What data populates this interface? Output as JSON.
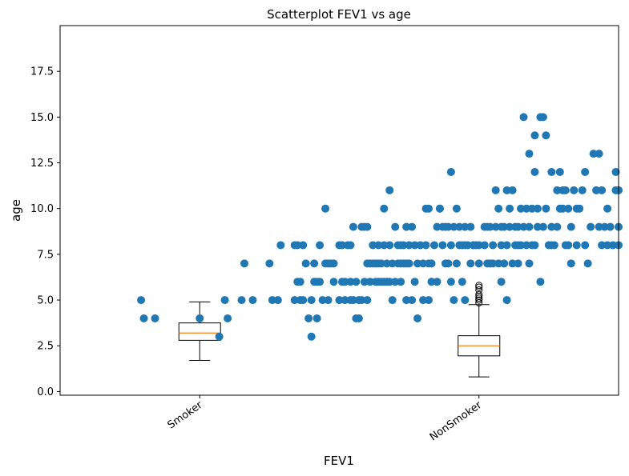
{
  "chart_data": {
    "type": "scatter",
    "title": "Scatterplot FEV1 vs age",
    "xlabel": "FEV1",
    "ylabel": "age",
    "xlim": [
      0.5,
      2.5
    ],
    "ylim": [
      -0.2,
      20
    ],
    "categories": [
      "Smoker",
      "NonSmoker"
    ],
    "category_positions": [
      1,
      2
    ],
    "yticks": [
      0.0,
      2.5,
      5.0,
      7.5,
      10.0,
      12.5,
      15.0,
      17.5
    ],
    "ytick_labels": [
      "0.0",
      "2.5",
      "5.0",
      "7.5",
      "10.0",
      "12.5",
      "15.0",
      "17.5"
    ],
    "grid": false,
    "point_color": "#1f77b4",
    "median_color": "#ff7f0e",
    "boxplots": [
      {
        "position": 1,
        "whisker_low": 1.7,
        "q1": 2.8,
        "median": 3.2,
        "q3": 3.75,
        "whisker_high": 4.9,
        "outliers": []
      },
      {
        "position": 2,
        "whisker_low": 0.8,
        "q1": 1.95,
        "median": 2.5,
        "q3": 3.05,
        "whisker_high": 4.75,
        "outliers": [
          4.85,
          5.0,
          5.1,
          5.2,
          5.3,
          5.55,
          5.7,
          5.8
        ]
      }
    ],
    "points": [
      [
        0.79,
        5
      ],
      [
        0.8,
        4
      ],
      [
        0.84,
        4
      ],
      [
        1.0,
        4
      ],
      [
        1.07,
        3
      ],
      [
        1.09,
        5
      ],
      [
        1.1,
        4
      ],
      [
        1.15,
        5
      ],
      [
        1.16,
        7
      ],
      [
        1.19,
        5
      ],
      [
        1.25,
        7
      ],
      [
        1.26,
        5
      ],
      [
        1.28,
        5
      ],
      [
        1.29,
        8
      ],
      [
        1.34,
        5
      ],
      [
        1.34,
        8
      ],
      [
        1.35,
        6
      ],
      [
        1.35,
        8
      ],
      [
        1.36,
        5
      ],
      [
        1.36,
        6
      ],
      [
        1.37,
        8
      ],
      [
        1.37,
        5
      ],
      [
        1.38,
        7
      ],
      [
        1.39,
        4
      ],
      [
        1.4,
        5
      ],
      [
        1.4,
        3
      ],
      [
        1.41,
        7
      ],
      [
        1.41,
        6
      ],
      [
        1.42,
        4
      ],
      [
        1.42,
        6
      ],
      [
        1.43,
        8
      ],
      [
        1.43,
        6
      ],
      [
        1.44,
        5
      ],
      [
        1.45,
        10
      ],
      [
        1.45,
        7
      ],
      [
        1.46,
        7
      ],
      [
        1.46,
        5
      ],
      [
        1.47,
        7
      ],
      [
        1.48,
        7
      ],
      [
        1.48,
        6
      ],
      [
        1.5,
        8
      ],
      [
        1.5,
        5
      ],
      [
        1.51,
        8
      ],
      [
        1.51,
        6
      ],
      [
        1.52,
        6
      ],
      [
        1.52,
        5
      ],
      [
        1.53,
        8
      ],
      [
        1.54,
        8
      ],
      [
        1.54,
        6
      ],
      [
        1.54,
        5
      ],
      [
        1.55,
        9
      ],
      [
        1.55,
        5
      ],
      [
        1.56,
        6
      ],
      [
        1.56,
        4
      ],
      [
        1.57,
        4
      ],
      [
        1.57,
        5
      ],
      [
        1.58,
        9
      ],
      [
        1.58,
        5
      ],
      [
        1.59,
        9
      ],
      [
        1.59,
        6
      ],
      [
        1.6,
        7
      ],
      [
        1.6,
        5
      ],
      [
        1.6,
        9
      ],
      [
        1.61,
        7
      ],
      [
        1.61,
        6
      ],
      [
        1.62,
        8
      ],
      [
        1.62,
        7
      ],
      [
        1.63,
        6
      ],
      [
        1.63,
        7
      ],
      [
        1.64,
        7
      ],
      [
        1.64,
        8
      ],
      [
        1.64,
        6
      ],
      [
        1.65,
        6
      ],
      [
        1.65,
        7
      ],
      [
        1.66,
        10
      ],
      [
        1.66,
        8
      ],
      [
        1.66,
        6
      ],
      [
        1.67,
        7
      ],
      [
        1.67,
        6
      ],
      [
        1.68,
        11
      ],
      [
        1.68,
        8
      ],
      [
        1.68,
        6
      ],
      [
        1.69,
        7
      ],
      [
        1.69,
        5
      ],
      [
        1.7,
        9
      ],
      [
        1.7,
        6
      ],
      [
        1.71,
        8
      ],
      [
        1.71,
        7
      ],
      [
        1.72,
        8
      ],
      [
        1.72,
        7
      ],
      [
        1.72,
        6
      ],
      [
        1.73,
        7
      ],
      [
        1.73,
        8
      ],
      [
        1.74,
        9
      ],
      [
        1.74,
        7
      ],
      [
        1.74,
        5
      ],
      [
        1.75,
        8
      ],
      [
        1.75,
        7
      ],
      [
        1.76,
        9
      ],
      [
        1.76,
        5
      ],
      [
        1.77,
        8
      ],
      [
        1.77,
        6
      ],
      [
        1.78,
        4
      ],
      [
        1.78,
        7
      ],
      [
        1.79,
        8
      ],
      [
        1.8,
        7
      ],
      [
        1.8,
        5
      ],
      [
        1.81,
        10
      ],
      [
        1.81,
        8
      ],
      [
        1.82,
        10
      ],
      [
        1.82,
        7
      ],
      [
        1.82,
        5
      ],
      [
        1.83,
        6
      ],
      [
        1.83,
        7
      ],
      [
        1.84,
        8
      ],
      [
        1.85,
        9
      ],
      [
        1.85,
        6
      ],
      [
        1.86,
        10
      ],
      [
        1.86,
        10
      ],
      [
        1.87,
        9
      ],
      [
        1.87,
        8
      ],
      [
        1.88,
        7
      ],
      [
        1.88,
        9
      ],
      [
        1.89,
        7
      ],
      [
        1.89,
        9
      ],
      [
        1.9,
        8
      ],
      [
        1.9,
        12
      ],
      [
        1.9,
        6
      ],
      [
        1.91,
        9
      ],
      [
        1.91,
        5
      ],
      [
        1.92,
        10
      ],
      [
        1.92,
        7
      ],
      [
        1.93,
        9
      ],
      [
        1.93,
        8
      ],
      [
        1.94,
        8
      ],
      [
        1.94,
        6
      ],
      [
        1.95,
        9
      ],
      [
        1.95,
        8
      ],
      [
        1.95,
        5
      ],
      [
        1.96,
        8
      ],
      [
        1.97,
        9
      ],
      [
        1.97,
        7
      ],
      [
        1.98,
        8
      ],
      [
        1.98,
        8
      ],
      [
        1.99,
        8
      ],
      [
        2.0,
        8
      ],
      [
        2.0,
        7
      ],
      [
        2.02,
        9
      ],
      [
        2.03,
        9
      ],
      [
        2.03,
        7
      ],
      [
        2.04,
        9
      ],
      [
        2.04,
        7
      ],
      [
        2.05,
        8
      ],
      [
        2.05,
        7
      ],
      [
        2.06,
        11
      ],
      [
        2.06,
        9
      ],
      [
        2.07,
        10
      ],
      [
        2.07,
        7
      ],
      [
        2.08,
        9
      ],
      [
        2.08,
        6
      ],
      [
        2.09,
        9
      ],
      [
        2.09,
        7
      ],
      [
        2.1,
        11
      ],
      [
        2.1,
        8
      ],
      [
        2.1,
        5
      ],
      [
        2.11,
        9
      ],
      [
        2.11,
        10
      ],
      [
        2.12,
        11
      ],
      [
        2.12,
        7
      ],
      [
        2.13,
        8
      ],
      [
        2.13,
        9
      ],
      [
        2.14,
        9
      ],
      [
        2.14,
        7
      ],
      [
        2.15,
        8
      ],
      [
        2.15,
        10
      ],
      [
        2.16,
        15
      ],
      [
        2.16,
        9
      ],
      [
        2.17,
        10
      ],
      [
        2.17,
        8
      ],
      [
        2.18,
        13
      ],
      [
        2.18,
        7
      ],
      [
        2.18,
        9
      ],
      [
        2.19,
        10
      ],
      [
        2.19,
        8
      ],
      [
        2.2,
        14
      ],
      [
        2.2,
        12
      ],
      [
        2.21,
        10
      ],
      [
        2.21,
        9
      ],
      [
        2.22,
        6
      ],
      [
        2.22,
        15
      ],
      [
        2.23,
        15
      ],
      [
        2.23,
        9
      ],
      [
        2.24,
        14
      ],
      [
        2.24,
        10
      ],
      [
        2.25,
        8
      ],
      [
        2.26,
        12
      ],
      [
        2.26,
        9
      ],
      [
        2.27,
        8
      ],
      [
        2.28,
        11
      ],
      [
        2.28,
        9
      ],
      [
        2.29,
        12
      ],
      [
        2.29,
        10
      ],
      [
        2.3,
        11
      ],
      [
        2.3,
        10
      ],
      [
        2.31,
        11
      ],
      [
        2.31,
        8
      ],
      [
        2.32,
        10
      ],
      [
        2.33,
        7
      ],
      [
        2.33,
        9
      ],
      [
        2.34,
        11
      ],
      [
        2.35,
        8
      ],
      [
        2.35,
        10
      ],
      [
        2.36,
        10
      ],
      [
        2.37,
        11
      ],
      [
        2.38,
        12
      ],
      [
        2.38,
        8
      ],
      [
        2.39,
        7
      ],
      [
        2.4,
        9
      ],
      [
        2.41,
        13
      ],
      [
        2.42,
        11
      ],
      [
        2.43,
        13
      ],
      [
        2.43,
        9
      ],
      [
        2.44,
        8
      ],
      [
        2.44,
        11
      ],
      [
        2.45,
        9
      ],
      [
        2.46,
        10
      ],
      [
        2.46,
        8
      ],
      [
        2.47,
        9
      ],
      [
        2.48,
        8
      ],
      [
        2.49,
        11
      ],
      [
        2.49,
        12
      ],
      [
        2.5,
        8
      ],
      [
        2.5,
        11
      ],
      [
        2.5,
        9
      ],
      [
        2.02,
        8
      ],
      [
        2.08,
        8
      ],
      [
        2.14,
        8
      ],
      [
        2.2,
        8
      ],
      [
        2.26,
        8
      ],
      [
        2.32,
        8
      ]
    ]
  }
}
